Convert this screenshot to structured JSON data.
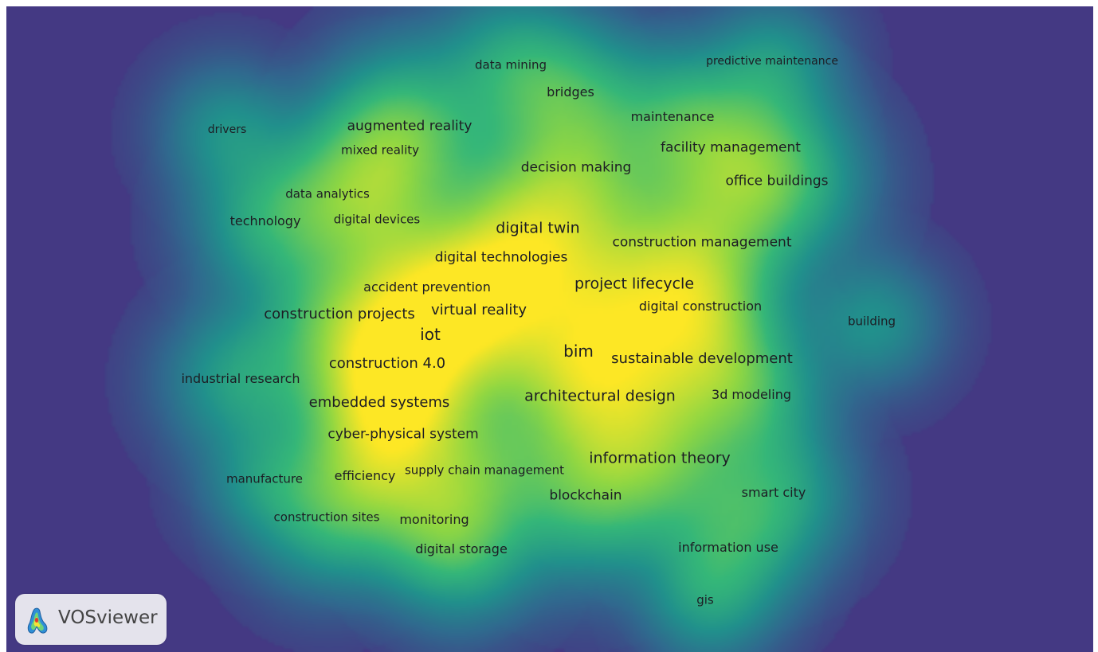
{
  "app": {
    "brand": "VOSviewer"
  },
  "map": {
    "keywords": [
      {
        "id": "data-mining",
        "label": "data mining",
        "weight": 2
      },
      {
        "id": "predictive-maintenance",
        "label": "predictive maintenance",
        "weight": 1
      },
      {
        "id": "bridges",
        "label": "bridges",
        "weight": 2
      },
      {
        "id": "maintenance",
        "label": "maintenance",
        "weight": 2
      },
      {
        "id": "drivers",
        "label": "drivers",
        "weight": 1
      },
      {
        "id": "augmented-reality",
        "label": "augmented reality",
        "weight": 3
      },
      {
        "id": "facility-management",
        "label": "facility management",
        "weight": 3
      },
      {
        "id": "mixed-reality",
        "label": "mixed reality",
        "weight": 2
      },
      {
        "id": "decision-making",
        "label": "decision making",
        "weight": 3
      },
      {
        "id": "office-buildings",
        "label": "office buildings",
        "weight": 3
      },
      {
        "id": "data-analytics",
        "label": "data analytics",
        "weight": 2
      },
      {
        "id": "technology",
        "label": "technology",
        "weight": 2
      },
      {
        "id": "digital-devices",
        "label": "digital devices",
        "weight": 2
      },
      {
        "id": "digital-twin",
        "label": "digital twin",
        "weight": 4
      },
      {
        "id": "construction-management",
        "label": "construction management",
        "weight": 3
      },
      {
        "id": "digital-technologies",
        "label": "digital technologies",
        "weight": 3
      },
      {
        "id": "project-lifecycle",
        "label": "project lifecycle",
        "weight": 4
      },
      {
        "id": "accident-prevention",
        "label": "accident prevention",
        "weight": 2
      },
      {
        "id": "digital-construction",
        "label": "digital construction",
        "weight": 2
      },
      {
        "id": "construction-projects",
        "label": "construction projects",
        "weight": 3
      },
      {
        "id": "virtual-reality",
        "label": "virtual reality",
        "weight": 3
      },
      {
        "id": "building",
        "label": "building",
        "weight": 1
      },
      {
        "id": "iot",
        "label": "iot",
        "weight": 4
      },
      {
        "id": "bim",
        "label": "bim",
        "weight": 4
      },
      {
        "id": "sustainable-development",
        "label": "sustainable development",
        "weight": 3
      },
      {
        "id": "construction-4-0",
        "label": "construction 4.0",
        "weight": 3
      },
      {
        "id": "industrial-research",
        "label": "industrial research",
        "weight": 2
      },
      {
        "id": "architectural-design",
        "label": "architectural design",
        "weight": 4
      },
      {
        "id": "3d-modeling",
        "label": "3d modeling",
        "weight": 2
      },
      {
        "id": "embedded-systems",
        "label": "embedded systems",
        "weight": 3
      },
      {
        "id": "cyber-physical-system",
        "label": "cyber-physical system",
        "weight": 3
      },
      {
        "id": "information-theory",
        "label": "information theory",
        "weight": 3
      },
      {
        "id": "manufacture",
        "label": "manufacture",
        "weight": 1
      },
      {
        "id": "efficiency",
        "label": "efficiency",
        "weight": 2
      },
      {
        "id": "supply-chain-management",
        "label": "supply chain management",
        "weight": 2
      },
      {
        "id": "blockchain",
        "label": "blockchain",
        "weight": 3
      },
      {
        "id": "smart-city",
        "label": "smart city",
        "weight": 2
      },
      {
        "id": "construction-sites",
        "label": "construction sites",
        "weight": 2
      },
      {
        "id": "monitoring",
        "label": "monitoring",
        "weight": 2
      },
      {
        "id": "digital-storage",
        "label": "digital storage",
        "weight": 2
      },
      {
        "id": "information-use",
        "label": "information use",
        "weight": 2
      },
      {
        "id": "gis",
        "label": "gis",
        "weight": 1
      }
    ],
    "colors": {
      "background": "#443983",
      "density_scale": [
        "#443983",
        "#31688e",
        "#21918c",
        "#35b779",
        "#90d743",
        "#fde725"
      ],
      "label_text": "#1d1d24"
    }
  }
}
